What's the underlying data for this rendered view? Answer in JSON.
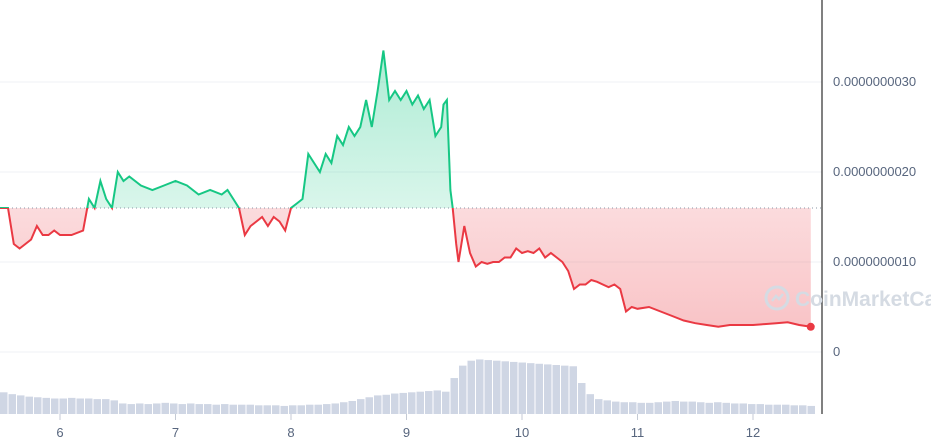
{
  "chart_data": {
    "type": "line",
    "y_tick_labels": [
      "0.0000000030",
      "0.0000000020",
      "0.0000000010",
      "0"
    ],
    "y_ticks": [
      3e-09,
      2e-09,
      1e-09,
      0
    ],
    "ylim": [
      0,
      3.8e-09
    ],
    "x_tick_labels": [
      "6",
      "7",
      "8",
      "9",
      "10",
      "11",
      "12"
    ],
    "x_ticks": [
      6,
      7,
      8,
      9,
      10,
      11,
      12
    ],
    "xlim": [
      5.48,
      12.5
    ],
    "baseline": 1.6e-09,
    "grid": true,
    "watermark": "CoinMarketCap",
    "colors": {
      "up": "#16c784",
      "down": "#ea3943",
      "volume": "#cfd6e4",
      "grid": "#eff2f5",
      "axis": "#000000",
      "text": "#58667e"
    },
    "series": [
      {
        "x": [
          5.48,
          5.55,
          5.6,
          5.65,
          5.7,
          5.75,
          5.8,
          5.85,
          5.9,
          5.95,
          6.0,
          6.1,
          6.2,
          6.25,
          6.3,
          6.35,
          6.4,
          6.45,
          6.5,
          6.55,
          6.6,
          6.7,
          6.8,
          6.9,
          7.0,
          7.1,
          7.2,
          7.3,
          7.4,
          7.45,
          7.5,
          7.55,
          7.6,
          7.65,
          7.7,
          7.75,
          7.8,
          7.85,
          7.9,
          7.95,
          8.0,
          8.05,
          8.1,
          8.15,
          8.2,
          8.25,
          8.3,
          8.35,
          8.4,
          8.45,
          8.5,
          8.55,
          8.6,
          8.65,
          8.7,
          8.75,
          8.8,
          8.85,
          8.9,
          8.95,
          9.0,
          9.05,
          9.1,
          9.15,
          9.2,
          9.25,
          9.3,
          9.32,
          9.35,
          9.38,
          9.4,
          9.43,
          9.45,
          9.5,
          9.55,
          9.6,
          9.65,
          9.7,
          9.75,
          9.8,
          9.85,
          9.9,
          9.95,
          10.0,
          10.05,
          10.1,
          10.15,
          10.2,
          10.25,
          10.3,
          10.35,
          10.4,
          10.45,
          10.5,
          10.55,
          10.6,
          10.65,
          10.7,
          10.75,
          10.8,
          10.85,
          10.9,
          10.95,
          11.0,
          11.1,
          11.2,
          11.3,
          11.4,
          11.5,
          11.6,
          11.7,
          11.8,
          11.9,
          12.0,
          12.1,
          12.2,
          12.3,
          12.4,
          12.5
        ],
        "y": [
          1.6e-09,
          1.6e-09,
          1.2e-09,
          1.15e-09,
          1.2e-09,
          1.25e-09,
          1.4e-09,
          1.3e-09,
          1.3e-09,
          1.35e-09,
          1.3e-09,
          1.3e-09,
          1.35e-09,
          1.7e-09,
          1.6e-09,
          1.9e-09,
          1.7e-09,
          1.6e-09,
          2e-09,
          1.9e-09,
          1.95e-09,
          1.85e-09,
          1.8e-09,
          1.85e-09,
          1.9e-09,
          1.85e-09,
          1.75e-09,
          1.8e-09,
          1.75e-09,
          1.8e-09,
          1.7e-09,
          1.6e-09,
          1.3e-09,
          1.4e-09,
          1.45e-09,
          1.5e-09,
          1.4e-09,
          1.5e-09,
          1.45e-09,
          1.35e-09,
          1.6e-09,
          1.65e-09,
          1.7e-09,
          2.2e-09,
          2.1e-09,
          2e-09,
          2.2e-09,
          2.1e-09,
          2.4e-09,
          2.3e-09,
          2.5e-09,
          2.4e-09,
          2.5e-09,
          2.8e-09,
          2.5e-09,
          2.9e-09,
          3.35e-09,
          2.8e-09,
          2.9e-09,
          2.8e-09,
          2.9e-09,
          2.75e-09,
          2.85e-09,
          2.7e-09,
          2.8e-09,
          2.4e-09,
          2.5e-09,
          2.75e-09,
          2.8e-09,
          1.8e-09,
          1.6e-09,
          1.2e-09,
          1e-09,
          1.4e-09,
          1.1e-09,
          9.5e-10,
          1e-09,
          9.8e-10,
          1e-09,
          1e-09,
          1.05e-09,
          1.05e-09,
          1.15e-09,
          1.1e-09,
          1.12e-09,
          1.1e-09,
          1.15e-09,
          1.05e-09,
          1.1e-09,
          1.05e-09,
          1e-09,
          9e-10,
          7e-10,
          7.5e-10,
          7.5e-10,
          8e-10,
          7.8e-10,
          7.5e-10,
          7.2e-10,
          7.5e-10,
          7e-10,
          4.5e-10,
          5e-10,
          4.8e-10,
          5e-10,
          4.5e-10,
          4e-10,
          3.5e-10,
          3.2e-10,
          3e-10,
          2.8e-10,
          3e-10,
          3e-10,
          3e-10,
          3.1e-10,
          3.2e-10,
          3.3e-10,
          3e-10,
          2.8e-10
        ]
      }
    ],
    "volume": [
      0.35,
      0.32,
      0.3,
      0.28,
      0.27,
      0.26,
      0.25,
      0.25,
      0.26,
      0.25,
      0.25,
      0.24,
      0.24,
      0.22,
      0.17,
      0.16,
      0.17,
      0.16,
      0.17,
      0.18,
      0.17,
      0.16,
      0.17,
      0.16,
      0.16,
      0.15,
      0.16,
      0.15,
      0.15,
      0.15,
      0.14,
      0.14,
      0.14,
      0.13,
      0.14,
      0.14,
      0.15,
      0.15,
      0.16,
      0.17,
      0.19,
      0.21,
      0.24,
      0.27,
      0.3,
      0.31,
      0.33,
      0.34,
      0.35,
      0.36,
      0.37,
      0.38,
      0.36,
      0.58,
      0.78,
      0.86,
      0.88,
      0.87,
      0.86,
      0.85,
      0.84,
      0.83,
      0.82,
      0.81,
      0.8,
      0.79,
      0.78,
      0.77,
      0.5,
      0.32,
      0.24,
      0.22,
      0.2,
      0.19,
      0.19,
      0.18,
      0.18,
      0.19,
      0.2,
      0.21,
      0.2,
      0.2,
      0.19,
      0.18,
      0.19,
      0.18,
      0.17,
      0.17,
      0.16,
      0.16,
      0.15,
      0.15,
      0.15,
      0.14,
      0.14,
      0.13
    ]
  }
}
